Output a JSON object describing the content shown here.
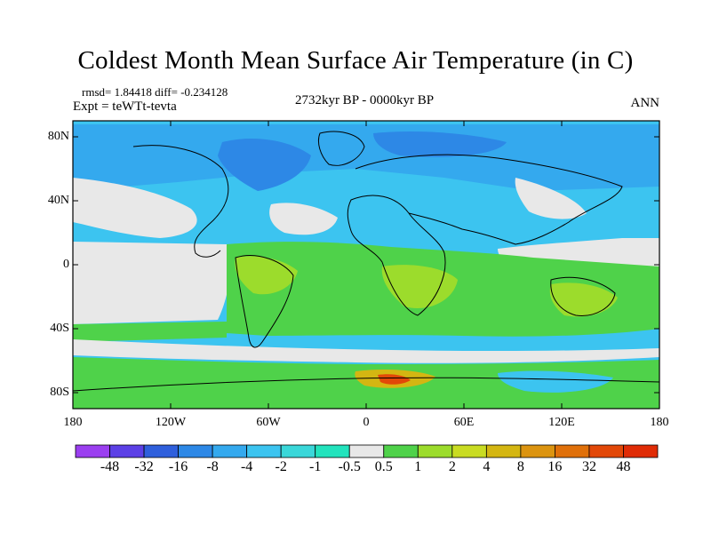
{
  "title": "Coldest Month Mean Surface Air Temperature (in C)",
  "stats": "rmsd= 1.84418 diff= -0.234128",
  "expt": "Expt = teWTt-tevta",
  "period": "2732kyr BP - 0000kyr BP",
  "season": "ANN",
  "axes": {
    "lat_ticks": [
      {
        "value": 80,
        "label": "80N"
      },
      {
        "value": 40,
        "label": "40N"
      },
      {
        "value": 0,
        "label": "0"
      },
      {
        "value": -40,
        "label": "40S"
      },
      {
        "value": -80,
        "label": "80S"
      }
    ],
    "lon_ticks": [
      {
        "value": -180,
        "label": "180"
      },
      {
        "value": -120,
        "label": "120W"
      },
      {
        "value": -60,
        "label": "60W"
      },
      {
        "value": 0,
        "label": "0"
      },
      {
        "value": 60,
        "label": "60E"
      },
      {
        "value": 120,
        "label": "120E"
      },
      {
        "value": 180,
        "label": "180"
      }
    ],
    "lon_range": [
      -180,
      180
    ],
    "lat_range": [
      -90,
      90
    ]
  },
  "colorbar": {
    "levels": [
      "-48",
      "-32",
      "-16",
      "-8",
      "-4",
      "-2",
      "-1",
      "-0.5",
      "0.5",
      "1",
      "2",
      "4",
      "8",
      "16",
      "32",
      "48"
    ],
    "colors": [
      "#9b3ff0",
      "#5c40e6",
      "#2f5fdc",
      "#2d88e6",
      "#34a9ee",
      "#3cc4f0",
      "#3ad7d9",
      "#22e3bd",
      "#e8e8e8",
      "#4fd24a",
      "#9cdc2c",
      "#c9dc22",
      "#d4b612",
      "#dc9410",
      "#e0700a",
      "#e24808",
      "#e02c06"
    ]
  }
}
